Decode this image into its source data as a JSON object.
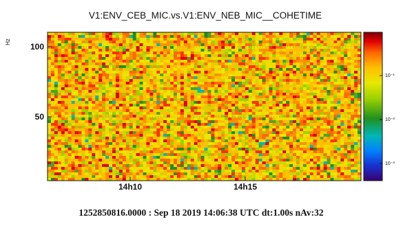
{
  "chart_data": {
    "type": "heatmap",
    "title": "V1:ENV_CEB_MIC.vs.V1:ENV_NEB_MIC__COHETIME",
    "ylabel": "Hz",
    "xlabel": "",
    "x_ticks": [
      "14h10",
      "14h15"
    ],
    "y_ticks": [
      100,
      50
    ],
    "colorbar": {
      "scale": "log",
      "tick_labels": [
        "10⁻¹",
        "10⁻²",
        "10⁻³"
      ],
      "colors": [
        "#7b0000",
        "#e00000",
        "#ff6a00",
        "#ffc000",
        "#e8e800",
        "#9bd000",
        "#209020",
        "#00b6b6",
        "#0080ff",
        "#1830d0",
        "#3a0070"
      ]
    },
    "grid": true,
    "footer": "1252850816.0000 : Sep 18 2019 14:06:38 UTC dt:1.00s nAv:32"
  }
}
